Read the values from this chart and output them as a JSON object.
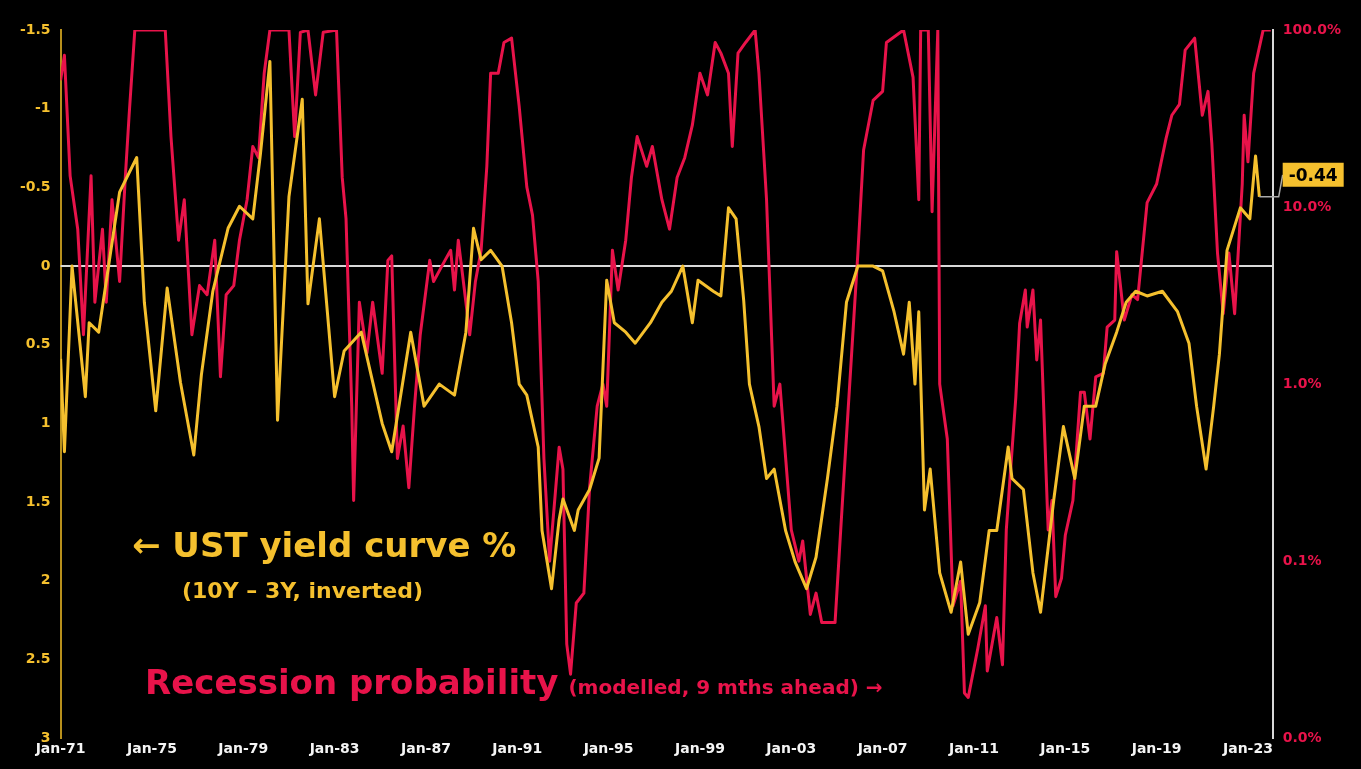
{
  "chart_data": {
    "type": "line",
    "xlim": [
      "1971-01",
      "2024-02"
    ],
    "xticks": [
      {
        "value": "1971-01",
        "label": "Jan-71"
      },
      {
        "value": "1975-01",
        "label": "Jan-75"
      },
      {
        "value": "1979-01",
        "label": "Jan-79"
      },
      {
        "value": "1983-01",
        "label": "Jan-83"
      },
      {
        "value": "1987-01",
        "label": "Jan-87"
      },
      {
        "value": "1991-01",
        "label": "Jan-91"
      },
      {
        "value": "1995-01",
        "label": "Jan-95"
      },
      {
        "value": "1999-01",
        "label": "Jan-99"
      },
      {
        "value": "2003-01",
        "label": "Jan-03"
      },
      {
        "value": "2007-01",
        "label": "Jan-07"
      },
      {
        "value": "2011-01",
        "label": "Jan-11"
      },
      {
        "value": "2015-01",
        "label": "Jan-15"
      },
      {
        "value": "2019-01",
        "label": "Jan-19"
      },
      {
        "value": "2023-01",
        "label": "Jan-23"
      }
    ],
    "ylim": [
      3,
      -1.5
    ],
    "yticks": [
      -1.5,
      -1,
      -0.5,
      0,
      0.5,
      1,
      1.5,
      2,
      2.5,
      3
    ],
    "y2lim": [
      0.01,
      100
    ],
    "y2ticks": [
      {
        "value": 0.01,
        "label": "0.0%"
      },
      {
        "value": 0.1,
        "label": "0.1%"
      },
      {
        "value": 1,
        "label": "1.0%"
      },
      {
        "value": 10,
        "label": "10.0%"
      },
      {
        "value": 100,
        "label": "100.0%"
      }
    ],
    "log": "y2",
    "grid": false,
    "legend": false,
    "ref_lines": [
      {
        "axis": "y",
        "value": 0,
        "color": "#d9d9d9"
      }
    ],
    "annotations": [
      "(10Y – 3Y, inverted)",
      "(modelled, 9 mths ahead) →",
      {
        "text": "-0.44",
        "x": "2023-07",
        "y": -0.44
      }
    ],
    "series": [
      {
        "name": "← UST yield curve %",
        "color": "#f5c02e",
        "x": [
          "1971-01",
          "1971-03",
          "1971-07",
          "1972-02",
          "1972-04",
          "1972-09",
          "1973-08",
          "1974-05",
          "1974-09",
          "1975-03",
          "1975-09",
          "1976-04",
          "1976-11",
          "1977-03",
          "1977-09",
          "1978-05",
          "1978-11",
          "1979-06",
          "1979-10",
          "1980-03",
          "1980-07",
          "1981-01",
          "1981-08",
          "1981-11",
          "1982-05",
          "1983-01",
          "1983-06",
          "1984-03",
          "1985-02",
          "1985-07",
          "1986-05",
          "1986-12",
          "1987-08",
          "1988-04",
          "1988-10",
          "1989-02",
          "1989-06",
          "1989-11",
          "1990-05",
          "1990-10",
          "1991-02",
          "1991-06",
          "1991-12",
          "1992-02",
          "1992-07",
          "1992-11",
          "1993-01",
          "1993-07",
          "1993-09",
          "1994-03",
          "1994-08",
          "1994-12",
          "1995-04",
          "1995-10",
          "1996-03",
          "1996-11",
          "1997-05",
          "1997-10",
          "1998-04",
          "1998-09",
          "1998-12",
          "1999-08",
          "1999-12",
          "2000-04",
          "2000-08",
          "2000-12",
          "2001-03",
          "2001-08",
          "2001-12",
          "2002-04",
          "2002-10",
          "2003-03",
          "2003-09",
          "2004-02",
          "2004-08",
          "2005-01",
          "2005-06",
          "2005-12",
          "2006-08",
          "2007-01",
          "2007-07",
          "2007-12",
          "2008-03",
          "2008-06",
          "2008-08",
          "2008-11",
          "2009-02",
          "2009-07",
          "2010-01",
          "2010-06",
          "2010-10",
          "2011-04",
          "2011-09",
          "2012-01",
          "2012-07",
          "2012-09",
          "2013-03",
          "2013-08",
          "2013-12",
          "2014-07",
          "2014-12",
          "2015-06",
          "2015-11",
          "2016-05",
          "2016-10",
          "2017-04",
          "2017-09",
          "2018-02",
          "2018-08",
          "2019-04",
          "2019-12",
          "2020-06",
          "2020-10",
          "2021-03",
          "2021-07",
          "2021-10",
          "2022-02",
          "2022-09",
          "2023-02",
          "2023-05",
          "2023-07"
        ],
        "values": [
          0.59,
          1.18,
          0,
          0.83,
          0.36,
          0.42,
          -0.47,
          -0.69,
          0.23,
          0.92,
          0.14,
          0.74,
          1.2,
          0.69,
          0.16,
          -0.24,
          -0.38,
          -0.3,
          -0.71,
          -1.3,
          0.98,
          -0.44,
          -1.06,
          0.24,
          -0.3,
          0.83,
          0.54,
          0.42,
          1.0,
          1.18,
          0.42,
          0.89,
          0.75,
          0.82,
          0.42,
          -0.24,
          -0.04,
          -0.1,
          0,
          0.36,
          0.75,
          0.82,
          1.15,
          1.68,
          2.05,
          1.61,
          1.48,
          1.68,
          1.55,
          1.42,
          1.22,
          0.09,
          0.36,
          0.42,
          0.49,
          0.36,
          0.23,
          0.16,
          0,
          0.36,
          0.09,
          0.16,
          0.19,
          -0.37,
          -0.3,
          0.22,
          0.75,
          1.02,
          1.35,
          1.29,
          1.68,
          1.88,
          2.05,
          1.85,
          1.35,
          0.89,
          0.23,
          0,
          0,
          0.03,
          0.29,
          0.56,
          0.23,
          0.75,
          0.29,
          1.55,
          1.29,
          1.95,
          2.2,
          1.88,
          2.34,
          2.14,
          1.68,
          1.68,
          1.15,
          1.35,
          1.42,
          1.95,
          2.2,
          1.48,
          1.02,
          1.35,
          0.89,
          0.89,
          0.62,
          0.42,
          0.23,
          0.16,
          0.19,
          0.16,
          0.29,
          0.49,
          0.89,
          1.29,
          0.89,
          0.56,
          -0.1,
          -0.37,
          -0.3,
          -0.7,
          -0.44
        ]
      },
      {
        "name": "Recession probability",
        "color": "#e8134a",
        "axis": "y2",
        "x": [
          "1971-01",
          "1971-03",
          "1971-06",
          "1971-10",
          "1972-01",
          "1972-05",
          "1972-07",
          "1972-11",
          "1973-01",
          "1973-04",
          "1973-08",
          "1973-11",
          "1974-01",
          "1974-04",
          "1975-08",
          "1975-11",
          "1976-03",
          "1976-06",
          "1976-10",
          "1977-02",
          "1977-06",
          "1977-10",
          "1978-01",
          "1978-04",
          "1978-08",
          "1978-11",
          "1979-03",
          "1979-06",
          "1979-09",
          "1979-12",
          "1980-03",
          "1981-01",
          "1981-04",
          "1981-07",
          "1981-11",
          "1982-03",
          "1982-07",
          "1983-02",
          "1983-05",
          "1983-07",
          "1983-10",
          "1983-11",
          "1984-02",
          "1984-06",
          "1984-09",
          "1985-02",
          "1985-05",
          "1985-07",
          "1985-10",
          "1986-01",
          "1986-04",
          "1986-07",
          "1986-10",
          "1987-03",
          "1987-05",
          "1987-11",
          "1988-02",
          "1988-04",
          "1988-06",
          "1988-10",
          "1988-12",
          "1989-03",
          "1989-06",
          "1989-09",
          "1989-11",
          "1990-03",
          "1990-06",
          "1990-10",
          "1991-02",
          "1991-06",
          "1991-09",
          "1991-12",
          "1992-03",
          "1992-06",
          "1992-11",
          "1993-01",
          "1993-03",
          "1993-05",
          "1993-08",
          "1993-12",
          "1994-03",
          "1994-07",
          "1994-10",
          "1994-12",
          "1995-03",
          "1995-06",
          "1995-10",
          "1996-01",
          "1996-04",
          "1996-09",
          "1996-12",
          "1997-05",
          "1997-09",
          "1998-01",
          "1998-05",
          "1998-09",
          "1999-01",
          "1999-05",
          "1999-09",
          "1999-12",
          "2000-04",
          "2000-06",
          "2000-09",
          "2001-01",
          "2001-06",
          "2001-08",
          "2001-12",
          "2002-04",
          "2002-07",
          "2003-01",
          "2003-05",
          "2003-07",
          "2003-11",
          "2004-02",
          "2004-05",
          "2004-12",
          "2005-05",
          "2005-12",
          "2006-03",
          "2006-08",
          "2007-01",
          "2007-03",
          "2007-12",
          "2008-05",
          "2008-08",
          "2008-09",
          "2009-01",
          "2009-03",
          "2009-06",
          "2009-07",
          "2009-11",
          "2010-02",
          "2010-06",
          "2010-08",
          "2010-10",
          "2011-03",
          "2011-07",
          "2011-08",
          "2012-01",
          "2012-04",
          "2012-06",
          "2012-11",
          "2013-01",
          "2013-04",
          "2013-05",
          "2013-08",
          "2013-10",
          "2013-12",
          "2014-04",
          "2014-06",
          "2014-08",
          "2014-11",
          "2015-01",
          "2015-05",
          "2015-09",
          "2015-11",
          "2016-02",
          "2016-05",
          "2016-09",
          "2016-11",
          "2017-03",
          "2017-04",
          "2017-08",
          "2017-12",
          "2018-03",
          "2018-08",
          "2019-01",
          "2019-06",
          "2019-09",
          "2020-01",
          "2020-04",
          "2020-09",
          "2021-01",
          "2021-04",
          "2021-06",
          "2021-09",
          "2021-12",
          "2022-03",
          "2022-06",
          "2022-10",
          "2022-11",
          "2023-01",
          "2023-04",
          "2023-09",
          "2024-01"
        ],
        "values": [
          52,
          72,
          15,
          7.5,
          1.9,
          15,
          2.9,
          7.5,
          2.9,
          11,
          3.8,
          14.7,
          33,
          100,
          100,
          25,
          6.5,
          11,
          1.9,
          3.6,
          3.2,
          6.5,
          1.1,
          3.2,
          3.6,
          6.5,
          11,
          22,
          19,
          57,
          100,
          100,
          25,
          97,
          100,
          43,
          97,
          100,
          14.7,
          8.6,
          0.75,
          0.22,
          2.9,
          1.5,
          2.9,
          1.15,
          5.0,
          5.3,
          0.38,
          0.58,
          0.26,
          0.75,
          1.9,
          5.0,
          3.8,
          5.0,
          5.7,
          3.4,
          6.5,
          2.9,
          1.9,
          3.8,
          5.7,
          17,
          57,
          57,
          85,
          90,
          37,
          13,
          9,
          3.8,
          0.38,
          0.1,
          0.44,
          0.33,
          0.034,
          0.023,
          0.058,
          0.066,
          0.26,
          0.75,
          1.0,
          0.75,
          5.7,
          3.4,
          6.5,
          14.7,
          25,
          17,
          22,
          11,
          7.5,
          14.7,
          19,
          29,
          57,
          43,
          85,
          74,
          57,
          22,
          74,
          85,
          100,
          57,
          11,
          0.75,
          1.0,
          0.15,
          0.1,
          0.13,
          0.05,
          0.066,
          0.045,
          0.045,
          0.34,
          5.5,
          21,
          40,
          45,
          85,
          100,
          54,
          11,
          100,
          100,
          9.4,
          100,
          1.0,
          0.49,
          0.056,
          0.077,
          0.018,
          0.017,
          0.032,
          0.056,
          0.024,
          0.048,
          0.026,
          0.15,
          0.84,
          2.2,
          3.4,
          2.1,
          3.4,
          1.37,
          2.3,
          0.15,
          0.22,
          0.063,
          0.08,
          0.14,
          0.22,
          0.9,
          0.9,
          0.49,
          1.1,
          1.15,
          2.1,
          2.3,
          5.6,
          2.3,
          3.2,
          3.0,
          10.6,
          13.5,
          24.5,
          33,
          38,
          77,
          90,
          33,
          45,
          23,
          5.5,
          2.5,
          5.5,
          2.5,
          13.5,
          33,
          18,
          57,
          100,
          100
        ]
      }
    ]
  }
}
